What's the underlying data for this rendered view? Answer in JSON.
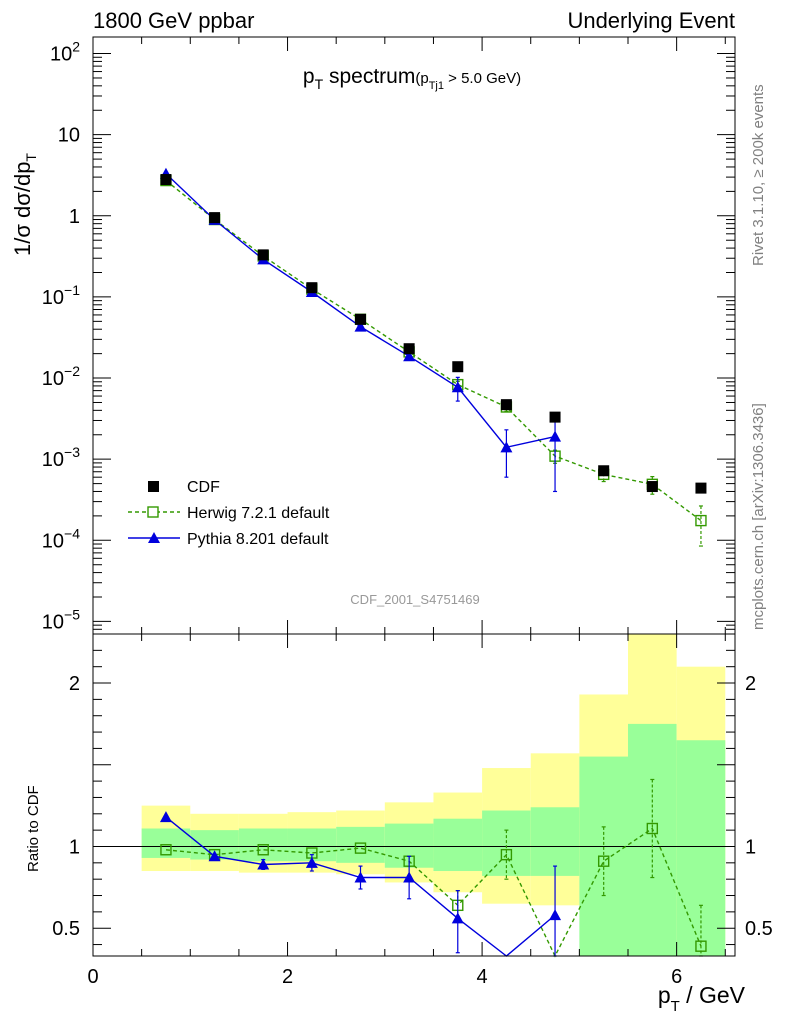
{
  "header": {
    "left": "1800 GeV ppbar",
    "right": "Underlying Event"
  },
  "side_labels": {
    "rivet": "Rivet 3.1.10, ≥ 200k events",
    "mcplots": "mcplots.cern.ch [arXiv:1306.3436]"
  },
  "watermark": "CDF_2001_S4751469",
  "colors": {
    "data": "#000000",
    "herwig": "#339900",
    "pythia": "#0000dd",
    "band_outer": "#ffff99",
    "band_inner": "#99ff99"
  },
  "chart_data": [
    {
      "type": "scatter",
      "title_main": "p",
      "title_sub": "T",
      "title_rest": " spectrum",
      "title_cut_pre": "(p",
      "title_cut_sub": "Tj1",
      "title_cut_post": " > 5.0 GeV)",
      "ylabel": "1/σ dσ/dp",
      "ylabel_sub": "T",
      "yscale": "log",
      "ylim": [
        7e-06,
        160
      ],
      "xlim": [
        0,
        6.6
      ],
      "y_tick_labels": [
        {
          "v": 100,
          "label": "10",
          "exp": "2"
        },
        {
          "v": 10,
          "label": "10",
          "exp": ""
        },
        {
          "v": 1,
          "label": "1",
          "exp": ""
        },
        {
          "v": 0.1,
          "label": "10",
          "exp": "−1"
        },
        {
          "v": 0.01,
          "label": "10",
          "exp": "−2"
        },
        {
          "v": 0.001,
          "label": "10",
          "exp": "−3"
        },
        {
          "v": 0.0001,
          "label": "10",
          "exp": "−4"
        },
        {
          "v": 1e-05,
          "label": "10",
          "exp": "−5"
        }
      ],
      "legend": {
        "placement": "lower-left",
        "entries": [
          "CDF",
          "Herwig 7.2.1 default",
          "Pythia 8.201 default"
        ]
      },
      "series": [
        {
          "name": "CDF",
          "style": "filled-square",
          "x": [
            0.75,
            1.25,
            1.75,
            2.25,
            2.75,
            3.25,
            3.75,
            4.25,
            4.75,
            5.25,
            5.75,
            6.25
          ],
          "y": [
            2.8,
            0.95,
            0.33,
            0.13,
            0.053,
            0.023,
            0.0138,
            0.0047,
            0.0033,
            0.00072,
            0.00046,
            0.00044
          ]
        },
        {
          "name": "Herwig 7.2.1 default",
          "style": "open-square-dashed",
          "x": [
            0.75,
            1.25,
            1.75,
            2.25,
            2.75,
            3.25,
            3.75,
            4.25,
            4.75,
            5.25,
            5.75,
            6.25
          ],
          "y": [
            2.72,
            0.9,
            0.32,
            0.125,
            0.053,
            0.021,
            0.0083,
            0.0044,
            0.00109,
            0.00065,
            0.00049,
            0.000175
          ],
          "yerr_lo": [
            0,
            0,
            0,
            0,
            0,
            0,
            0.0008,
            0.0005,
            0.0002,
            0.00012,
            0.00012,
            9e-05
          ],
          "yerr_hi": [
            0,
            0,
            0,
            0,
            0,
            0,
            0.0008,
            0.0005,
            0.0002,
            0.00012,
            0.00012,
            9e-05
          ]
        },
        {
          "name": "Pythia 8.201 default",
          "style": "filled-triangle-solid",
          "x": [
            0.75,
            1.25,
            1.75,
            2.25,
            2.75,
            3.25,
            3.75,
            4.25,
            4.75
          ],
          "y": [
            3.3,
            0.89,
            0.29,
            0.115,
            0.043,
            0.0186,
            0.0077,
            0.0014,
            0.0019
          ],
          "yerr_lo": [
            0,
            0,
            0,
            0,
            0,
            0.002,
            0.0025,
            0.0008,
            0.0015
          ],
          "yerr_hi": [
            0,
            0,
            0,
            0,
            0,
            0.002,
            0.0025,
            0.0009,
            0.0012
          ]
        }
      ]
    },
    {
      "type": "scatter",
      "ylabel": "Ratio to CDF",
      "xlabel_main": "p",
      "xlabel_sub": "T",
      "xlabel_rest": " / GeV",
      "ylim": [
        0.33,
        2.3
      ],
      "xlim": [
        0,
        6.6
      ],
      "x_ticks": [
        0,
        2,
        4,
        6
      ],
      "y_ticks": [
        0.5,
        1,
        2
      ],
      "bands": {
        "edges": [
          0.5,
          1.0,
          1.5,
          2.0,
          2.5,
          3.0,
          3.5,
          4.0,
          4.5,
          5.0,
          5.5,
          6.0,
          6.5
        ],
        "outer_lo": [
          0.85,
          0.85,
          0.84,
          0.84,
          0.83,
          0.78,
          0.72,
          0.65,
          0.64,
          0.82,
          0.55,
          0.33
        ],
        "outer_hi": [
          1.25,
          1.2,
          1.2,
          1.21,
          1.22,
          1.27,
          1.33,
          1.48,
          1.57,
          1.93,
          2.4,
          2.1
        ],
        "inner_lo": [
          0.93,
          0.92,
          0.91,
          0.91,
          0.9,
          0.87,
          0.85,
          0.82,
          0.82,
          0.33,
          0.33,
          0.33
        ],
        "inner_hi": [
          1.11,
          1.1,
          1.11,
          1.11,
          1.12,
          1.14,
          1.17,
          1.22,
          1.24,
          1.55,
          1.75,
          1.65
        ]
      },
      "series": [
        {
          "name": "Herwig 7.2.1 default",
          "style": "open-square-dashed",
          "x": [
            0.75,
            1.25,
            1.75,
            2.25,
            2.75,
            3.25,
            3.75,
            4.25,
            4.75,
            5.25,
            5.75,
            6.25
          ],
          "y": [
            0.98,
            0.95,
            0.98,
            0.96,
            0.99,
            0.91,
            0.64,
            0.95,
            0.29,
            0.91,
            1.11,
            0.39
          ],
          "yerr_lo": [
            0,
            0,
            0,
            0,
            0,
            0.03,
            0.09,
            0.15,
            0,
            0.21,
            0.3,
            0.25
          ],
          "yerr_hi": [
            0,
            0,
            0,
            0,
            0,
            0.03,
            0.09,
            0.15,
            0,
            0.21,
            0.3,
            0.25
          ]
        },
        {
          "name": "Pythia 8.201 default",
          "style": "filled-triangle-solid",
          "x": [
            0.75,
            1.25,
            1.75,
            2.25,
            2.75,
            3.25,
            3.75,
            4.25,
            4.75
          ],
          "y": [
            1.18,
            0.94,
            0.89,
            0.9,
            0.81,
            0.81,
            0.56,
            0.3,
            0.58
          ],
          "yerr_lo": [
            0,
            0,
            0.03,
            0.05,
            0.07,
            0.13,
            0.21,
            0,
            0.45
          ],
          "yerr_hi": [
            0,
            0,
            0.03,
            0.05,
            0.07,
            0.13,
            0.17,
            0,
            0.3
          ]
        }
      ]
    }
  ]
}
